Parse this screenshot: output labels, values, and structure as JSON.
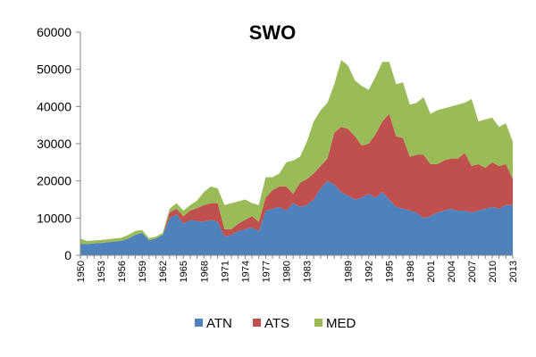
{
  "chart_data": {
    "type": "area",
    "stacked": true,
    "title": "SWO",
    "xlabel": "",
    "ylabel": "",
    "ylim": [
      0,
      60000
    ],
    "yticks": [
      0,
      10000,
      20000,
      30000,
      40000,
      50000,
      60000
    ],
    "ytick_labels": [
      "0",
      "10000",
      "20000",
      "30000",
      "40000",
      "50000",
      "60000"
    ],
    "xtick_labels": [
      "1950",
      "1953",
      "1956",
      "1959",
      "1962",
      "1965",
      "1968",
      "1971",
      "1974",
      "1977",
      "1980",
      "1983",
      "1989",
      "1992",
      "1995",
      "1998",
      "2001",
      "2004",
      "2007",
      "2010",
      "2013"
    ],
    "x": [
      1950,
      1951,
      1952,
      1953,
      1954,
      1955,
      1956,
      1957,
      1958,
      1959,
      1960,
      1961,
      1962,
      1963,
      1964,
      1965,
      1966,
      1967,
      1968,
      1969,
      1970,
      1971,
      1972,
      1973,
      1974,
      1975,
      1976,
      1977,
      1978,
      1979,
      1980,
      1981,
      1982,
      1983,
      1984,
      1985,
      1986,
      1987,
      1988,
      1989,
      1990,
      1991,
      1992,
      1993,
      1994,
      1995,
      1996,
      1997,
      1998,
      1999,
      2000,
      2001,
      2002,
      2003,
      2004,
      2005,
      2006,
      2007,
      2008,
      2009,
      2010,
      2011,
      2012,
      2013
    ],
    "series": [
      {
        "name": "ATN",
        "color": "#4F81BD",
        "values": [
          3000,
          3000,
          3200,
          3300,
          3500,
          3700,
          3900,
          4500,
          5500,
          6000,
          4000,
          4500,
          5500,
          10000,
          11000,
          8500,
          9500,
          9200,
          9000,
          9500,
          9000,
          5000,
          5500,
          6500,
          7000,
          7500,
          6500,
          12000,
          12500,
          13000,
          12000,
          14000,
          13000,
          13500,
          15000,
          18000,
          20000,
          19000,
          17000,
          16000,
          15000,
          15500,
          16500,
          15500,
          17000,
          15000,
          13000,
          12500,
          12000,
          11500,
          10000,
          10500,
          11500,
          12000,
          12500,
          12000,
          12000,
          11500,
          12000,
          12500,
          13000,
          12500,
          13500,
          13500
        ]
      },
      {
        "name": "ATS",
        "color": "#C0504D",
        "values": [
          0,
          0,
          0,
          0,
          0,
          0,
          0,
          0,
          0,
          0,
          0,
          0,
          0,
          1500,
          1500,
          2000,
          2500,
          3500,
          4500,
          4500,
          5000,
          2000,
          1500,
          2000,
          2500,
          3000,
          2500,
          3500,
          5000,
          5500,
          6500,
          2500,
          6500,
          7000,
          7000,
          6000,
          6000,
          14000,
          17500,
          18000,
          17000,
          14000,
          13500,
          17000,
          19000,
          23000,
          19000,
          19000,
          14500,
          15500,
          17000,
          14000,
          13000,
          13500,
          13500,
          14000,
          15500,
          12500,
          12500,
          11000,
          12000,
          11500,
          11000,
          7000
        ]
      },
      {
        "name": "MED",
        "color": "#9BBB59",
        "values": [
          1500,
          800,
          800,
          800,
          800,
          800,
          800,
          1000,
          1000,
          800,
          600,
          500,
          500,
          1000,
          1500,
          1500,
          1500,
          2000,
          3500,
          4500,
          4000,
          6500,
          7000,
          6000,
          5500,
          3500,
          4500,
          5500,
          3500,
          3500,
          6500,
          9000,
          7000,
          10000,
          14000,
          15000,
          15000,
          13000,
          18000,
          17000,
          15000,
          16000,
          14500,
          15500,
          16000,
          14000,
          14000,
          15000,
          14000,
          14000,
          15500,
          13500,
          14500,
          14000,
          14000,
          14500,
          13500,
          18000,
          11500,
          13000,
          12000,
          10500,
          11000,
          10000
        ]
      }
    ],
    "legend": {
      "position": "bottom",
      "entries": [
        "ATN",
        "ATS",
        "MED"
      ]
    },
    "grid": false
  }
}
